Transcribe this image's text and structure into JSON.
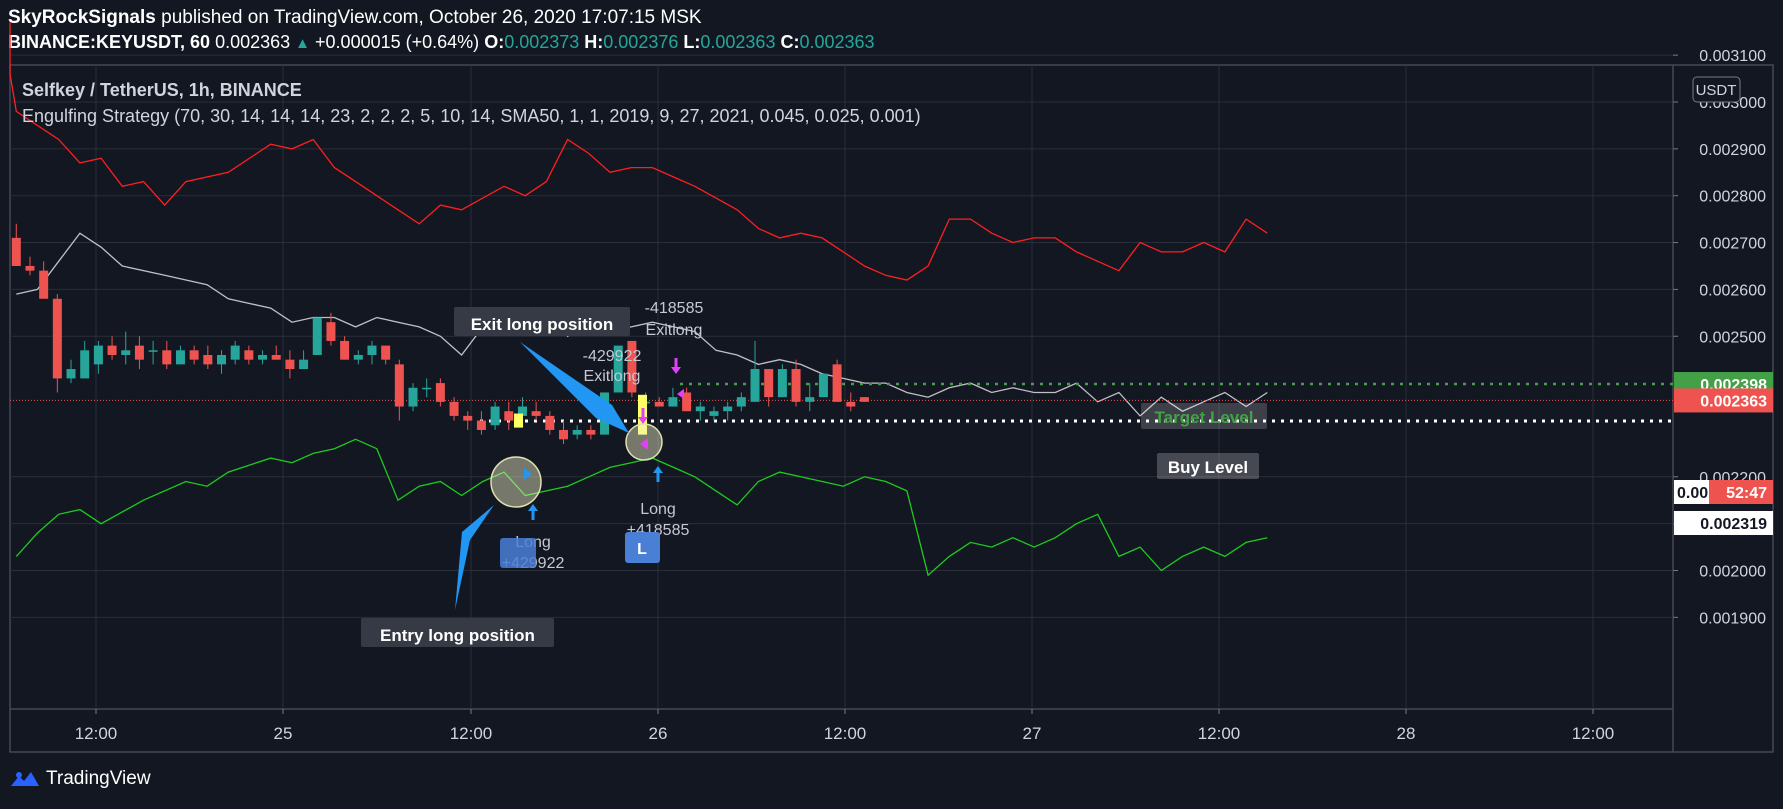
{
  "header": {
    "publisher": "SkyRockSignals",
    "published_text": "published on TradingView.com, October 26, 2020 17:07:15 MSK",
    "symbol": "BINANCE:KEYUSDT, 60",
    "price": "0.002363",
    "change": "+0.000015 (+0.64%)",
    "o_label": "O:",
    "o_value": "0.002373",
    "h_label": "H:",
    "h_value": "0.002376",
    "l_label": "L:",
    "l_value": "0.002363",
    "c_label": "C:",
    "c_value": "0.002363"
  },
  "legend": {
    "title": "Selfkey / TetherUS, 1h, BINANCE",
    "strategy": "Engulfing Strategy (70, 30, 14, 14, 14, 23, 2, 2, 2, 5, 10, 14, SMA50, 1, 1, 2019, 9, 27, 2021, 0.045, 0.025, 0.001)"
  },
  "footer": {
    "brand": "TradingView"
  },
  "chart_data": {
    "type": "candlestick",
    "currency": "USDT",
    "ylim": [
      0.00188,
      0.00313
    ],
    "y_ticks": [
      {
        "label": "0.003100",
        "value": 0.0031
      },
      {
        "label": "0.003000",
        "value": 0.003
      },
      {
        "label": "0.002900",
        "value": 0.0029
      },
      {
        "label": "0.002800",
        "value": 0.0028
      },
      {
        "label": "0.002700",
        "value": 0.0027
      },
      {
        "label": "0.002600",
        "value": 0.0026
      },
      {
        "label": "0.002500",
        "value": 0.0025
      },
      {
        "label": "0.002200",
        "value": 0.0022
      },
      {
        "label": "0.002100",
        "value": 0.0021
      },
      {
        "label": "0.002000",
        "value": 0.002
      },
      {
        "label": "0.001900",
        "value": 0.0019
      }
    ],
    "x_ticks": [
      "12:00",
      "25",
      "12:00",
      "26",
      "12:00",
      "27",
      "12:00",
      "28",
      "12:00"
    ],
    "price_tags": [
      {
        "label": "0.002398",
        "value": 0.002398,
        "bg": "#43a047",
        "fg": "#ffffff"
      },
      {
        "label": "0.002363",
        "value": 0.002363,
        "bg": "#ef5350",
        "fg": "#ffffff"
      },
      {
        "label": "0.00",
        "value": 0.00233,
        "bg": "#ffffff",
        "fg": "#131722"
      },
      {
        "label": "52:47",
        "value": 0.00233,
        "bg": "#ef5350",
        "fg": "#ffffff"
      },
      {
        "label": "0.002319",
        "value": 0.002319,
        "bg": "#ffffff",
        "fg": "#131722"
      }
    ],
    "candles": [
      [
        0.00271,
        0.00274,
        0.00265,
        0.00265
      ],
      [
        0.00265,
        0.00267,
        0.00263,
        0.00264
      ],
      [
        0.00264,
        0.00266,
        0.00258,
        0.00258
      ],
      [
        0.00258,
        0.00259,
        0.00238,
        0.00241
      ],
      [
        0.00241,
        0.00245,
        0.0024,
        0.00243
      ],
      [
        0.00241,
        0.00249,
        0.00241,
        0.00247
      ],
      [
        0.00244,
        0.00249,
        0.00242,
        0.00248
      ],
      [
        0.00248,
        0.0025,
        0.00245,
        0.00246
      ],
      [
        0.00246,
        0.00251,
        0.00244,
        0.00247
      ],
      [
        0.00248,
        0.0025,
        0.00243,
        0.00245
      ],
      [
        0.00247,
        0.00249,
        0.00244,
        0.00247
      ],
      [
        0.00247,
        0.00249,
        0.00243,
        0.00244
      ],
      [
        0.00244,
        0.00248,
        0.00244,
        0.00247
      ],
      [
        0.00247,
        0.00248,
        0.00244,
        0.00245
      ],
      [
        0.00246,
        0.00248,
        0.00243,
        0.00244
      ],
      [
        0.00244,
        0.00247,
        0.00242,
        0.00246
      ],
      [
        0.00245,
        0.00249,
        0.00244,
        0.00248
      ],
      [
        0.00247,
        0.00248,
        0.00244,
        0.00245
      ],
      [
        0.00245,
        0.00247,
        0.00244,
        0.00246
      ],
      [
        0.00246,
        0.00248,
        0.00245,
        0.00245
      ],
      [
        0.00245,
        0.00247,
        0.00241,
        0.00243
      ],
      [
        0.00243,
        0.00247,
        0.00243,
        0.00245
      ],
      [
        0.00246,
        0.00254,
        0.00246,
        0.00254
      ],
      [
        0.00253,
        0.00255,
        0.00248,
        0.00249
      ],
      [
        0.00249,
        0.0025,
        0.00245,
        0.00245
      ],
      [
        0.00245,
        0.00247,
        0.00244,
        0.00246
      ],
      [
        0.00246,
        0.00249,
        0.00244,
        0.00248
      ],
      [
        0.00248,
        0.00248,
        0.00244,
        0.00245
      ],
      [
        0.00244,
        0.00245,
        0.00232,
        0.00235
      ],
      [
        0.00235,
        0.0024,
        0.00234,
        0.00239
      ],
      [
        0.00239,
        0.00241,
        0.00237,
        0.00239
      ],
      [
        0.0024,
        0.00241,
        0.00235,
        0.00236
      ],
      [
        0.00236,
        0.00237,
        0.00232,
        0.00233
      ],
      [
        0.00233,
        0.00234,
        0.0023,
        0.00232
      ],
      [
        0.00232,
        0.00234,
        0.00229,
        0.0023
      ],
      [
        0.00231,
        0.00236,
        0.0023,
        0.00235
      ],
      [
        0.00234,
        0.00236,
        0.0023,
        0.00232
      ],
      [
        0.00233,
        0.00237,
        0.00232,
        0.00235
      ],
      [
        0.00234,
        0.00236,
        0.00232,
        0.00233
      ],
      [
        0.00233,
        0.00234,
        0.00229,
        0.0023
      ],
      [
        0.0023,
        0.00232,
        0.00227,
        0.00228
      ],
      [
        0.00229,
        0.00231,
        0.00228,
        0.0023
      ],
      [
        0.0023,
        0.00231,
        0.00228,
        0.00229
      ],
      [
        0.00229,
        0.00238,
        0.00229,
        0.00238
      ],
      [
        0.00238,
        0.00248,
        0.00238,
        0.00248
      ],
      [
        0.00249,
        0.00249,
        0.00237,
        0.00238
      ],
      [
        0.00236,
        0.00238,
        0.00235,
        0.00236
      ],
      [
        0.00236,
        0.00237,
        0.00235,
        0.00235
      ],
      [
        0.00235,
        0.00239,
        0.00235,
        0.00237
      ],
      [
        0.00238,
        0.00239,
        0.00234,
        0.00234
      ],
      [
        0.00234,
        0.00236,
        0.00232,
        0.00235
      ],
      [
        0.00233,
        0.00235,
        0.00232,
        0.00234
      ],
      [
        0.00234,
        0.00236,
        0.00232,
        0.00235
      ],
      [
        0.00235,
        0.00238,
        0.00234,
        0.00237
      ],
      [
        0.00236,
        0.00249,
        0.00236,
        0.00243
      ],
      [
        0.00243,
        0.00243,
        0.00235,
        0.00237
      ],
      [
        0.00237,
        0.00244,
        0.00237,
        0.00243
      ],
      [
        0.00243,
        0.00245,
        0.00235,
        0.00236
      ],
      [
        0.00236,
        0.0024,
        0.00234,
        0.00237
      ],
      [
        0.00237,
        0.00241,
        0.00237,
        0.00242
      ],
      [
        0.00244,
        0.00245,
        0.00236,
        0.00236
      ],
      [
        0.00236,
        0.00238,
        0.00234,
        0.00235
      ],
      [
        0.00237,
        0.00237,
        0.00236,
        0.00236
      ]
    ],
    "series": [
      {
        "color": "#ff1f1f",
        "values": [
          [
            -6,
            0.00317
          ],
          [
            -2,
            0.00306
          ],
          [
            0,
            0.00298
          ],
          [
            2,
            0.00292
          ],
          [
            3,
            0.00287
          ],
          [
            4,
            0.00288
          ],
          [
            5,
            0.00282
          ],
          [
            6,
            0.00283
          ],
          [
            7,
            0.00278
          ],
          [
            8,
            0.00283
          ],
          [
            10,
            0.00285
          ],
          [
            12,
            0.00291
          ],
          [
            13,
            0.0029
          ],
          [
            14,
            0.00292
          ],
          [
            15,
            0.00286
          ],
          [
            16,
            0.00283
          ],
          [
            18,
            0.00277
          ],
          [
            19,
            0.00274
          ],
          [
            20,
            0.00278
          ],
          [
            21,
            0.00277
          ],
          [
            23,
            0.00282
          ],
          [
            24,
            0.0028
          ],
          [
            25,
            0.00283
          ],
          [
            26,
            0.00292
          ],
          [
            27,
            0.00289
          ],
          [
            28,
            0.00285
          ],
          [
            29,
            0.00286
          ],
          [
            30,
            0.00286
          ],
          [
            31,
            0.00284
          ],
          [
            32,
            0.00282
          ],
          [
            34,
            0.00277
          ],
          [
            35,
            0.00273
          ],
          [
            36,
            0.00271
          ],
          [
            37,
            0.00272
          ],
          [
            38,
            0.00271
          ],
          [
            39,
            0.00268
          ],
          [
            40,
            0.00265
          ],
          [
            41,
            0.00263
          ],
          [
            42,
            0.00262
          ],
          [
            43,
            0.00265
          ],
          [
            44,
            0.00275
          ],
          [
            45,
            0.00275
          ],
          [
            46,
            0.00272
          ],
          [
            47,
            0.0027
          ],
          [
            48,
            0.00271
          ],
          [
            49,
            0.00271
          ],
          [
            50,
            0.00268
          ],
          [
            51,
            0.00266
          ],
          [
            52,
            0.00264
          ],
          [
            53,
            0.0027
          ],
          [
            54,
            0.00268
          ],
          [
            55,
            0.00268
          ],
          [
            56,
            0.0027
          ],
          [
            57,
            0.00268
          ],
          [
            58,
            0.00275
          ],
          [
            59,
            0.00272
          ]
        ]
      },
      {
        "color": "#c0c0c8",
        "values": [
          [
            0,
            0.00259
          ],
          [
            1,
            0.0026
          ],
          [
            2,
            0.00266
          ],
          [
            3,
            0.00272
          ],
          [
            4,
            0.00269
          ],
          [
            5,
            0.00265
          ],
          [
            7,
            0.00263
          ],
          [
            8,
            0.00262
          ],
          [
            9,
            0.00261
          ],
          [
            10,
            0.00258
          ],
          [
            11,
            0.00257
          ],
          [
            12,
            0.00256
          ],
          [
            13,
            0.00253
          ],
          [
            14,
            0.00254
          ],
          [
            15,
            0.00254
          ],
          [
            16,
            0.00252
          ],
          [
            17,
            0.00254
          ],
          [
            18,
            0.00253
          ],
          [
            19,
            0.00252
          ],
          [
            20,
            0.0025
          ],
          [
            21,
            0.00246
          ],
          [
            22,
            0.00252
          ],
          [
            23,
            0.00252
          ],
          [
            24,
            0.00251
          ],
          [
            25,
            0.00256
          ],
          [
            26,
            0.0025
          ],
          [
            27,
            0.00253
          ],
          [
            28,
            0.00251
          ],
          [
            29,
            0.00252
          ],
          [
            30,
            0.00253
          ],
          [
            31,
            0.00252
          ],
          [
            32,
            0.00251
          ],
          [
            33,
            0.00247
          ],
          [
            34,
            0.00246
          ],
          [
            35,
            0.00244
          ],
          [
            36,
            0.00245
          ],
          [
            37,
            0.00244
          ],
          [
            38,
            0.00242
          ],
          [
            39,
            0.00241
          ],
          [
            40,
            0.0024
          ],
          [
            41,
            0.0024
          ],
          [
            42,
            0.00238
          ],
          [
            43,
            0.00237
          ],
          [
            44,
            0.00239
          ],
          [
            45,
            0.0024
          ],
          [
            46,
            0.00238
          ],
          [
            47,
            0.00239
          ],
          [
            48,
            0.00238
          ],
          [
            49,
            0.00238
          ],
          [
            50,
            0.0024
          ],
          [
            51,
            0.00236
          ],
          [
            52,
            0.00238
          ],
          [
            53,
            0.00233
          ],
          [
            54,
            0.00237
          ],
          [
            55,
            0.00234
          ],
          [
            56,
            0.00236
          ],
          [
            57,
            0.00238
          ],
          [
            58,
            0.00235
          ],
          [
            59,
            0.00238
          ]
        ]
      },
      {
        "color": "#1ecb1e",
        "values": [
          [
            0,
            0.00203
          ],
          [
            1,
            0.00208
          ],
          [
            2,
            0.00212
          ],
          [
            3,
            0.00213
          ],
          [
            4,
            0.0021
          ],
          [
            6,
            0.00215
          ],
          [
            8,
            0.00219
          ],
          [
            9,
            0.00218
          ],
          [
            10,
            0.00221
          ],
          [
            12,
            0.00224
          ],
          [
            13,
            0.00223
          ],
          [
            14,
            0.00225
          ],
          [
            15,
            0.00226
          ],
          [
            16,
            0.00228
          ],
          [
            17,
            0.00226
          ],
          [
            18,
            0.00215
          ],
          [
            19,
            0.00218
          ],
          [
            20,
            0.00219
          ],
          [
            21,
            0.00216
          ],
          [
            22,
            0.00219
          ],
          [
            23,
            0.00221
          ],
          [
            24,
            0.00216
          ],
          [
            26,
            0.00218
          ],
          [
            27,
            0.0022
          ],
          [
            28,
            0.00222
          ],
          [
            29,
            0.00223
          ],
          [
            30,
            0.00224
          ],
          [
            31,
            0.00222
          ],
          [
            32,
            0.0022
          ],
          [
            33,
            0.00217
          ],
          [
            34,
            0.00214
          ],
          [
            35,
            0.00219
          ],
          [
            36,
            0.00221
          ],
          [
            37,
            0.0022
          ],
          [
            38,
            0.00219
          ],
          [
            39,
            0.00218
          ],
          [
            40,
            0.0022
          ],
          [
            41,
            0.00219
          ],
          [
            42,
            0.00217
          ],
          [
            43,
            0.00199
          ],
          [
            44,
            0.00203
          ],
          [
            45,
            0.00206
          ],
          [
            46,
            0.00205
          ],
          [
            47,
            0.00207
          ],
          [
            48,
            0.00205
          ],
          [
            49,
            0.00207
          ],
          [
            50,
            0.0021
          ],
          [
            51,
            0.00212
          ],
          [
            52,
            0.00203
          ],
          [
            53,
            0.00205
          ],
          [
            54,
            0.002
          ],
          [
            55,
            0.00203
          ],
          [
            56,
            0.00205
          ],
          [
            57,
            0.00203
          ],
          [
            58,
            0.00206
          ],
          [
            59,
            0.00207
          ]
        ]
      }
    ],
    "levels": [
      {
        "name": "Target Level",
        "value": 0.002398,
        "color": "#43a047"
      },
      {
        "name": "Buy Level",
        "value": 0.002319,
        "color": "#ffffff"
      }
    ],
    "current_price": 0.002363,
    "trade_labels": [
      {
        "text": "-418585",
        "color": "#c5c8d2"
      },
      {
        "text": "Exitlong",
        "color": "#c5c8d2"
      },
      {
        "text": "-429922",
        "color": "#c5c8d2"
      },
      {
        "text": "Exitlong",
        "color": "#c5c8d2"
      },
      {
        "text": "Long",
        "color": "#c5c8d2"
      },
      {
        "text": "+429922",
        "color": "#c5c8d2"
      },
      {
        "text": "Long",
        "color": "#c5c8d2"
      },
      {
        "text": "+418585",
        "color": "#c5c8d2"
      }
    ],
    "annotations": [
      "Exit long position",
      "Entry long position"
    ],
    "badge": "L"
  }
}
